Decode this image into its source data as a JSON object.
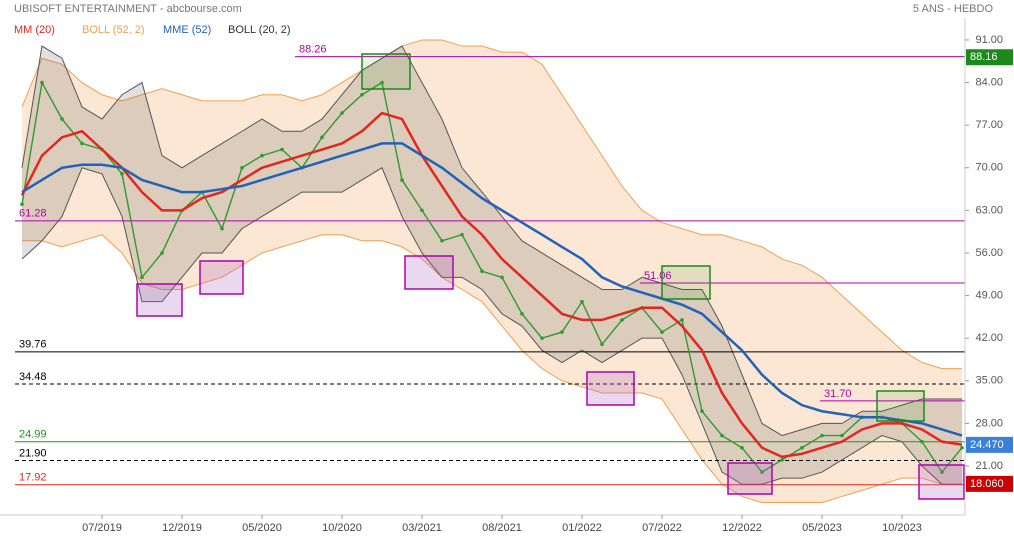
{
  "chart_data": {
    "type": "line",
    "title": "UBISOFT ENTERTAINMENT - abcbourse.com",
    "subtitle": "5 ANS - HEBDO",
    "categories": [
      null,
      null,
      null,
      null,
      "07/2019",
      null,
      null,
      null,
      "12/2019",
      null,
      null,
      null,
      "05/2020",
      null,
      null,
      null,
      "10/2020",
      null,
      null,
      null,
      "03/2021",
      null,
      null,
      null,
      "08/2021",
      null,
      null,
      null,
      "01/2022",
      null,
      null,
      null,
      "07/2022",
      null,
      null,
      null,
      "12/2022",
      null,
      null,
      null,
      "05/2023",
      null,
      null,
      null,
      "10/2023",
      null,
      null,
      null
    ],
    "price": {
      "color": "#2f9a2f",
      "values": [
        64,
        84,
        78,
        74,
        73,
        69,
        52,
        56,
        63,
        66,
        60,
        70,
        72,
        73,
        70,
        75,
        79,
        82,
        84,
        68,
        63,
        58,
        59,
        53,
        52,
        46,
        42,
        43,
        48,
        41,
        45,
        47,
        43,
        45,
        30,
        26,
        24,
        20,
        22,
        24,
        26,
        26,
        29,
        29,
        28,
        25,
        20,
        24
      ]
    },
    "series": [
      {
        "name": "MM (20)",
        "color": "#e0281e",
        "values": [
          65.5,
          72,
          75,
          76,
          73,
          70,
          66,
          63,
          63,
          65,
          66,
          68,
          70,
          71,
          72,
          73,
          74,
          76,
          79,
          78,
          72,
          67,
          62,
          59,
          55,
          52,
          49,
          46,
          45,
          45,
          46,
          47,
          47,
          44,
          40,
          33,
          28,
          24,
          22.5,
          23,
          24,
          25,
          27,
          28,
          28,
          27,
          25,
          24.5
        ]
      },
      {
        "name": "BOLL (52, 2)",
        "color": "#f0a050",
        "upper": [
          80,
          88,
          87,
          84,
          82,
          81,
          82,
          83,
          82,
          81,
          81,
          81,
          82,
          82,
          81,
          82,
          84,
          86,
          88,
          90,
          91,
          91,
          90,
          90,
          89,
          89,
          87,
          82,
          77,
          72,
          67,
          63,
          61,
          60,
          59,
          59,
          58,
          57,
          55,
          54,
          52,
          49,
          46,
          43,
          40,
          38,
          37,
          37
        ],
        "lower": [
          58,
          58,
          57,
          58,
          59,
          56,
          51,
          50,
          50,
          51,
          52,
          54,
          56,
          57,
          58,
          59,
          59,
          58,
          58,
          57,
          55,
          52,
          50,
          48,
          44,
          40,
          37,
          35,
          34,
          33,
          33,
          33,
          32,
          27,
          22,
          18,
          16,
          15,
          15,
          15,
          15,
          16,
          17,
          18,
          19,
          19,
          18,
          18
        ]
      },
      {
        "name": "MME (52)",
        "color": "#2262b8",
        "values": [
          66,
          68,
          70,
          70.5,
          70.5,
          70,
          68,
          67,
          66,
          66,
          66.5,
          67,
          68,
          69,
          70,
          71,
          72,
          73,
          74,
          74,
          72,
          70,
          67.5,
          65,
          63,
          61,
          59,
          57,
          55,
          52,
          50.5,
          49.5,
          48.5,
          47.5,
          46,
          43,
          40,
          36,
          33,
          31,
          30,
          29.5,
          29,
          29,
          28.5,
          28,
          27,
          26
        ]
      },
      {
        "name": "BOLL (20, 2)",
        "color": "#555555",
        "upper": [
          70,
          90,
          88,
          80,
          78,
          82,
          84,
          72,
          70,
          72,
          74,
          76,
          78,
          76,
          76,
          78,
          82,
          86,
          88,
          90,
          84,
          78,
          70,
          66,
          62,
          58,
          56,
          54,
          52,
          50,
          50,
          52,
          51,
          50,
          50,
          44,
          36,
          28,
          26,
          27,
          28,
          28,
          30,
          30,
          31,
          32,
          32,
          32
        ],
        "lower": [
          55,
          58,
          62,
          70,
          69,
          62,
          48,
          48,
          52,
          56,
          56,
          60,
          62,
          64,
          66,
          66,
          66,
          68,
          70,
          62,
          56,
          52,
          52,
          50,
          46,
          44,
          40,
          38,
          40,
          38,
          40,
          42,
          42,
          36,
          28,
          20,
          18,
          18,
          19,
          19,
          20,
          22,
          24,
          26,
          25,
          21,
          18,
          18
        ]
      }
    ],
    "levels": [
      {
        "value": 88.26,
        "color": "#b000b0",
        "style": "solid"
      },
      {
        "value": 61.28,
        "color": "#b000b0",
        "style": "solid"
      },
      {
        "value": 51.06,
        "color": "#b000b0",
        "style": "solid"
      },
      {
        "value": 39.76,
        "color": "#000000",
        "style": "solid"
      },
      {
        "value": 34.48,
        "color": "#000000",
        "style": "dashed"
      },
      {
        "value": {
          "value": 31.7,
          "label": "31.70"
        },
        "color": "#b000b0",
        "style": "solid"
      },
      {
        "value": 24.99,
        "color": "#1a9a1a",
        "style": "solid"
      },
      {
        "value": {
          "value": 21.9,
          "label": "21.90"
        },
        "color": "#000000",
        "style": "dashed"
      },
      {
        "value": 17.92,
        "color": "#e0281e",
        "style": "solid"
      }
    ],
    "markers": [
      {
        "value": 88.16,
        "color": "#1a8a1a"
      },
      {
        "value": {
          "value": 24.47,
          "label": "24.470"
        },
        "color": "#3a7fd8"
      },
      {
        "value": {
          "value": 18.06,
          "label": "18.060"
        },
        "color": "#cc0000"
      }
    ],
    "ylim": [
      14,
      94
    ],
    "yticks": [
      {
        "value": 91,
        "label": "91.00"
      },
      {
        "value": 84,
        "label": "84.00"
      },
      {
        "value": 77,
        "label": "77.00"
      },
      {
        "value": 70,
        "label": "70.00"
      },
      {
        "value": 63,
        "label": "63.00"
      },
      {
        "value": 56,
        "label": "56.00"
      },
      {
        "value": 49,
        "label": "49.00"
      },
      {
        "value": 42,
        "label": "42.00"
      },
      {
        "value": 35,
        "label": "35.00"
      },
      {
        "value": 28,
        "label": "28.00"
      },
      {
        "value": 21,
        "label": "21.00"
      }
    ]
  }
}
